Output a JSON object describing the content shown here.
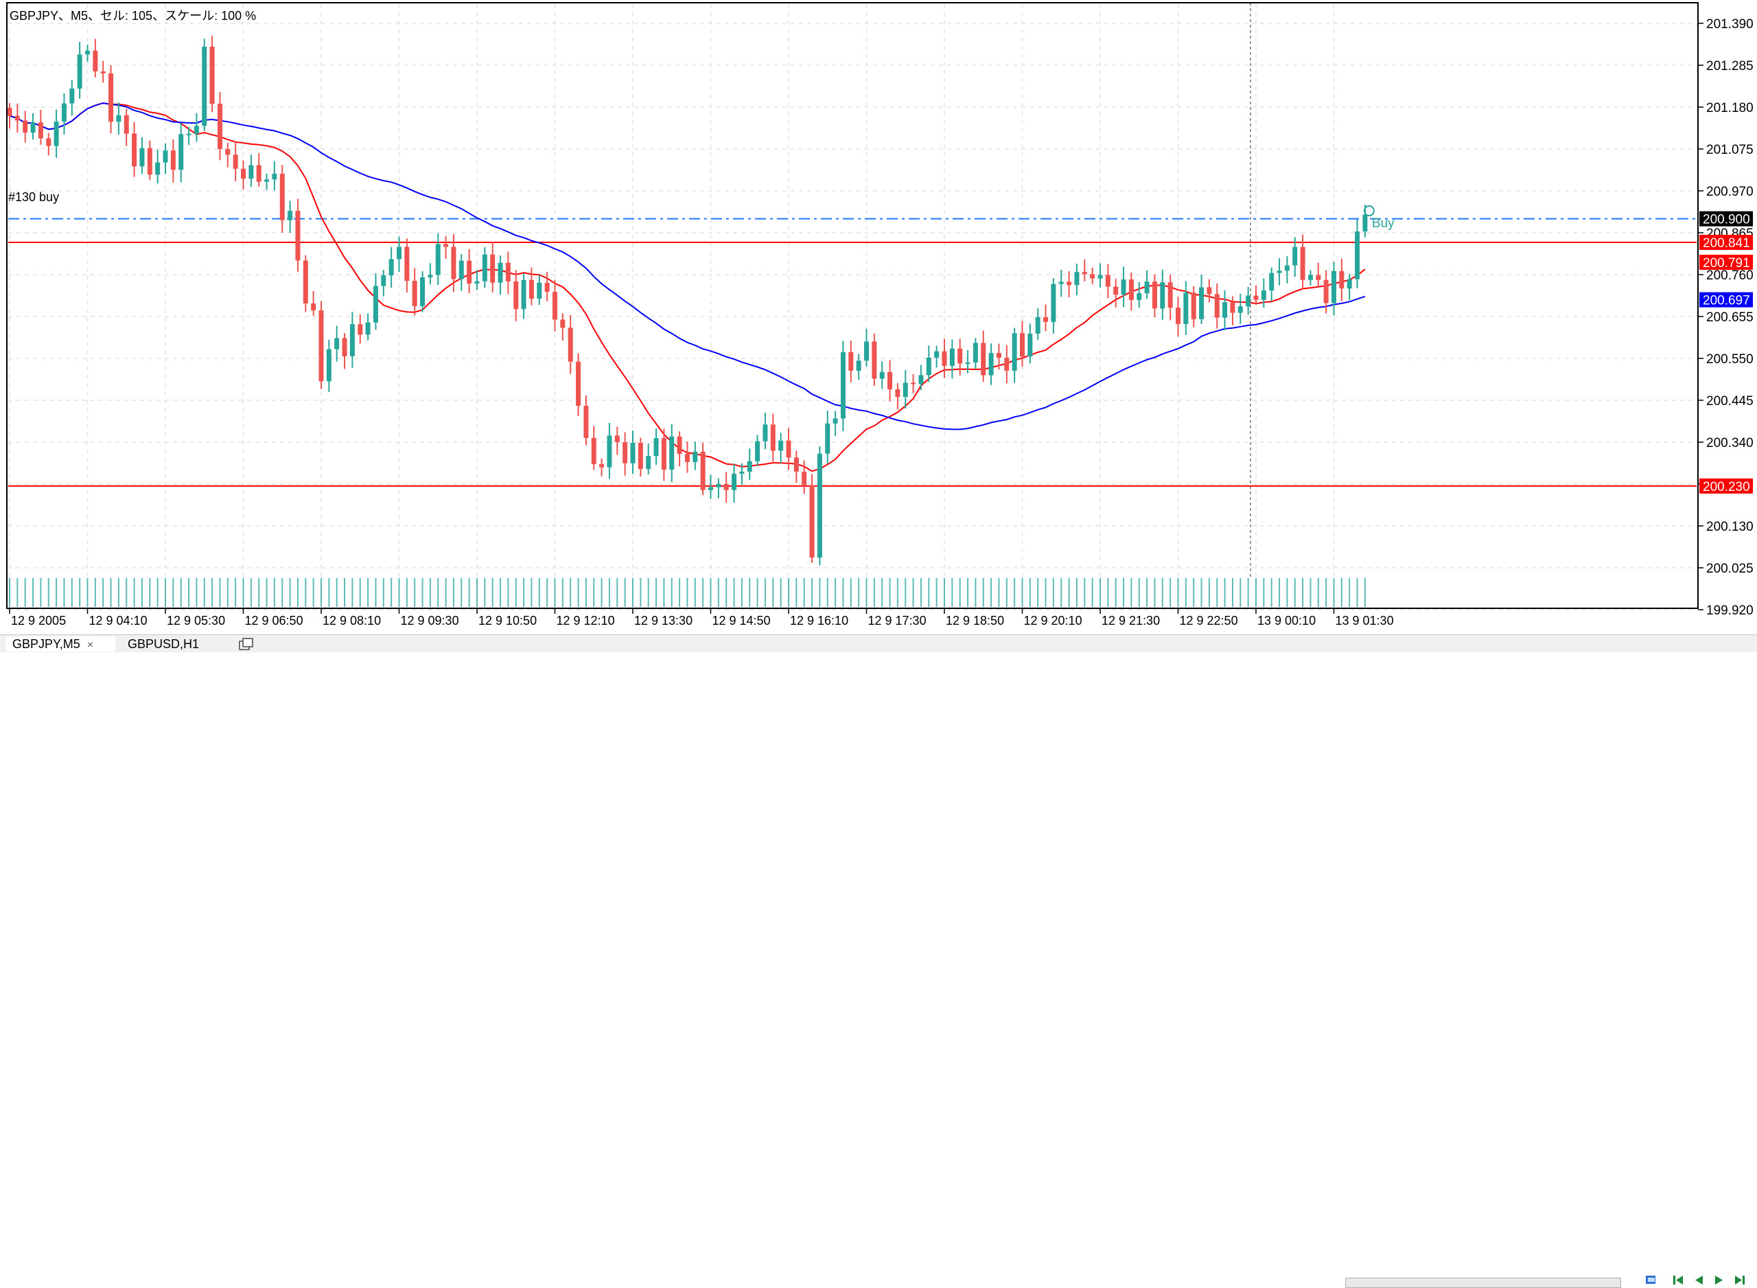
{
  "chart_data": {
    "type": "candlestick",
    "title": "GBPJPY、M5、セル: 105、スケール: 100 %",
    "symbol": "GBPJPY",
    "timeframe": "M5",
    "x_tick_labels": [
      "12 9 2005",
      "12 9 04:10",
      "12 9 05:30",
      "12 9 06:50",
      "12 9 08:10",
      "12 9 09:30",
      "12 9 10:50",
      "12 9 12:10",
      "12 9 13:30",
      "12 9 14:50",
      "12 9 16:10",
      "12 9 17:30",
      "12 9 18:50",
      "12 9 20:10",
      "12 9 21:30",
      "12 9 22:50",
      "13 9 00:10",
      "13 9 01:30"
    ],
    "y_tick_labels": [
      "201.390",
      "201.285",
      "201.180",
      "201.075",
      "200.970",
      "200.865",
      "200.760",
      "200.655",
      "200.550",
      "200.445",
      "200.340",
      "200.235",
      "200.130",
      "200.025",
      "199.920"
    ],
    "ylim": [
      199.86,
      201.44
    ],
    "candle_count": 175,
    "anchors": [
      [
        0,
        201.14
      ],
      [
        5,
        201.1
      ],
      [
        8,
        201.24
      ],
      [
        10,
        201.32
      ],
      [
        14,
        201.15
      ],
      [
        17,
        201.02
      ],
      [
        20,
        201.05
      ],
      [
        24,
        201.14
      ],
      [
        25,
        201.3
      ],
      [
        27,
        201.08
      ],
      [
        30,
        201.02
      ],
      [
        34,
        200.98
      ],
      [
        36,
        200.9
      ],
      [
        38,
        200.72
      ],
      [
        40,
        200.52
      ],
      [
        42,
        200.58
      ],
      [
        46,
        200.65
      ],
      [
        48,
        200.76
      ],
      [
        50,
        200.82
      ],
      [
        52,
        200.7
      ],
      [
        55,
        200.82
      ],
      [
        58,
        200.76
      ],
      [
        62,
        200.78
      ],
      [
        65,
        200.7
      ],
      [
        68,
        200.75
      ],
      [
        71,
        200.61
      ],
      [
        73,
        200.44
      ],
      [
        75,
        200.28
      ],
      [
        77,
        200.34
      ],
      [
        80,
        200.29
      ],
      [
        83,
        200.33
      ],
      [
        87,
        200.3
      ],
      [
        90,
        200.23
      ],
      [
        94,
        200.25
      ],
      [
        97,
        200.38
      ],
      [
        101,
        200.28
      ],
      [
        103,
        200.08
      ],
      [
        104,
        200.3
      ],
      [
        107,
        200.53
      ],
      [
        110,
        200.55
      ],
      [
        113,
        200.48
      ],
      [
        116,
        200.48
      ],
      [
        119,
        200.56
      ],
      [
        122,
        200.56
      ],
      [
        126,
        200.53
      ],
      [
        129,
        200.58
      ],
      [
        132,
        200.62
      ],
      [
        135,
        200.75
      ],
      [
        138,
        200.77
      ],
      [
        141,
        200.72
      ],
      [
        144,
        200.73
      ],
      [
        147,
        200.71
      ],
      [
        150,
        200.66
      ],
      [
        153,
        200.72
      ],
      [
        156,
        200.65
      ],
      [
        158,
        200.69
      ],
      [
        161,
        200.73
      ],
      [
        165,
        200.8
      ],
      [
        168,
        200.74
      ],
      [
        170,
        200.72
      ],
      [
        172,
        200.75
      ],
      [
        174,
        200.91
      ]
    ],
    "buy_marker": {
      "text": "Buy",
      "price": 200.92
    },
    "horizontal_lines": [
      {
        "label": "#130 buy",
        "price": 200.9,
        "color": "#1e78ff",
        "style": "dashed"
      },
      {
        "price": 200.841,
        "color": "#ff0000",
        "style": "solid"
      },
      {
        "price": 200.23,
        "color": "#ff0000",
        "style": "solid"
      }
    ],
    "price_tags": [
      {
        "text": "200.900",
        "price": 200.9,
        "bg": "#000000"
      },
      {
        "text": "200.841",
        "price": 200.841,
        "bg": "#ff0000"
      },
      {
        "text": "200.791",
        "price": 200.791,
        "bg": "#ff0000"
      },
      {
        "text": "200.697",
        "price": 200.697,
        "bg": "#0000ff"
      },
      {
        "text": "200.230",
        "price": 200.23,
        "bg": "#ff0000"
      }
    ],
    "moving_averages": [
      {
        "color": "#ff0000",
        "period": 14
      },
      {
        "color": "#0000ff",
        "period": 50
      }
    ],
    "colors": {
      "bull": "#26a69a",
      "bear": "#ef5350",
      "grid": "#e3e3e3",
      "frame": "#000000"
    }
  },
  "order_label": "#130 buy",
  "buy_text": "Buy",
  "tabs": [
    {
      "label": "GBPJPY,M5",
      "close": "×",
      "active": true
    },
    {
      "label": "GBPUSD,H1",
      "active": false
    }
  ]
}
